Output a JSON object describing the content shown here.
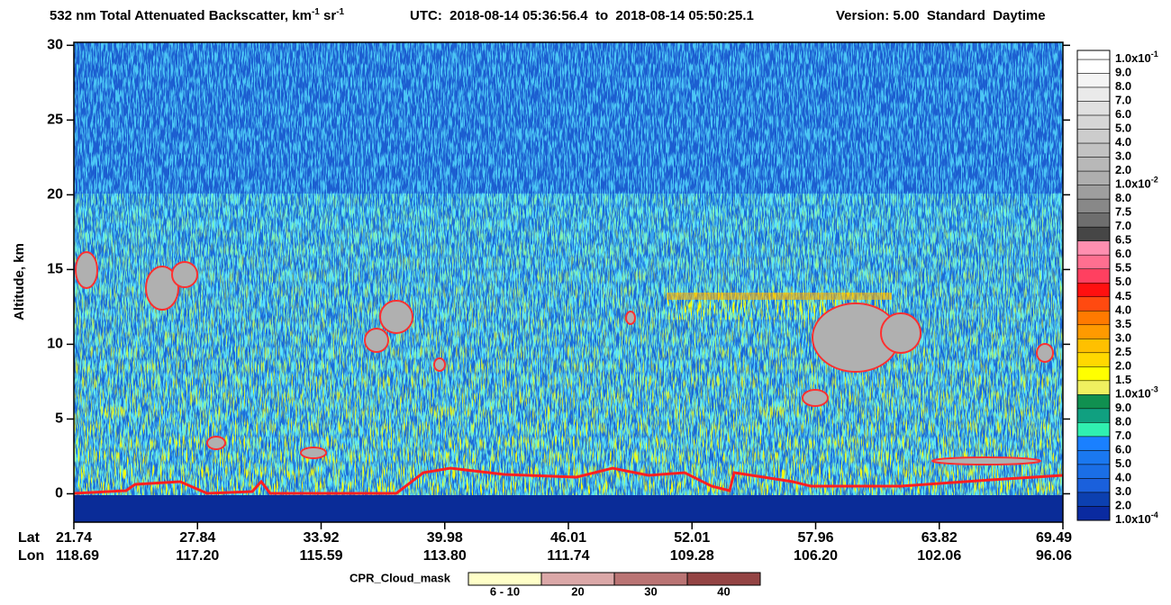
{
  "chart_data": {
    "type": "curtain",
    "title": {
      "text": "532 nm Total Attenuated Backscatter, km",
      "sup1": "-1",
      "unit2": " sr",
      "sup2": "-1"
    },
    "utc": "UTC:  2018-08-14 05:36:56.4  to  2018-08-14 05:50:25.1",
    "version": "Version: 5.00  Standard  Daytime",
    "y_label": "Altitude, km",
    "ylim": [
      -1.9,
      30.2
    ],
    "yticks": [
      0,
      5,
      10,
      15,
      20,
      25,
      30
    ],
    "lat_label": "Lat",
    "lon_label": "Lon",
    "lat": [
      "21.74",
      "27.84",
      "33.92",
      "39.98",
      "46.01",
      "52.01",
      "57.96",
      "63.82",
      "69.49"
    ],
    "lon": [
      "118.69",
      "117.20",
      "115.59",
      "113.80",
      "111.74",
      "109.28",
      "106.20",
      "102.06",
      "96.06"
    ],
    "colorbar": {
      "labels": [
        {
          "text": "1.0x10",
          "sup": "-1"
        },
        {
          "text": "9.0"
        },
        {
          "text": "8.0"
        },
        {
          "text": "7.0"
        },
        {
          "text": "6.0"
        },
        {
          "text": "5.0"
        },
        {
          "text": "4.0"
        },
        {
          "text": "3.0"
        },
        {
          "text": "2.0"
        },
        {
          "text": "1.0x10",
          "sup": "-2"
        },
        {
          "text": "8.0"
        },
        {
          "text": "7.5"
        },
        {
          "text": "7.0"
        },
        {
          "text": "6.5"
        },
        {
          "text": "6.0"
        },
        {
          "text": "5.5"
        },
        {
          "text": "5.0"
        },
        {
          "text": "4.5"
        },
        {
          "text": "4.0"
        },
        {
          "text": "3.5"
        },
        {
          "text": "3.0"
        },
        {
          "text": "2.5"
        },
        {
          "text": "2.0"
        },
        {
          "text": "1.5"
        },
        {
          "text": "1.0x10",
          "sup": "-3"
        },
        {
          "text": "9.0"
        },
        {
          "text": "8.0"
        },
        {
          "text": "7.0"
        },
        {
          "text": "6.0"
        },
        {
          "text": "5.0"
        },
        {
          "text": "4.0"
        },
        {
          "text": "3.0"
        },
        {
          "text": "2.0"
        },
        {
          "text": "1.0x10",
          "sup": "-4"
        }
      ],
      "colors": [
        "#ffffff",
        "#f4f4f4",
        "#eaeaea",
        "#e0e0e0",
        "#d6d6d6",
        "#cccccc",
        "#c2c2c2",
        "#b8b8b8",
        "#aeaeae",
        "#9e9e9e",
        "#888888",
        "#6e6e6e",
        "#464646",
        "#ff8fb0",
        "#ff6f90",
        "#ff4060",
        "#ff1010",
        "#ff4a10",
        "#ff7a00",
        "#ff9a00",
        "#ffc000",
        "#ffd800",
        "#ffff00",
        "#f0f060",
        "#109050",
        "#10a080",
        "#30f0b0",
        "#1a80ff",
        "#1a78f0",
        "#1a6ee6",
        "#1a60dc",
        "#0c40b0",
        "#0a2aa0"
      ]
    },
    "cpr": {
      "label": "CPR_Cloud_mask",
      "bins": [
        "6 - 10",
        "20",
        "30",
        "40"
      ],
      "colors": [
        "#ffffc8",
        "#dba8a8",
        "#ba7474",
        "#944444"
      ]
    }
  }
}
